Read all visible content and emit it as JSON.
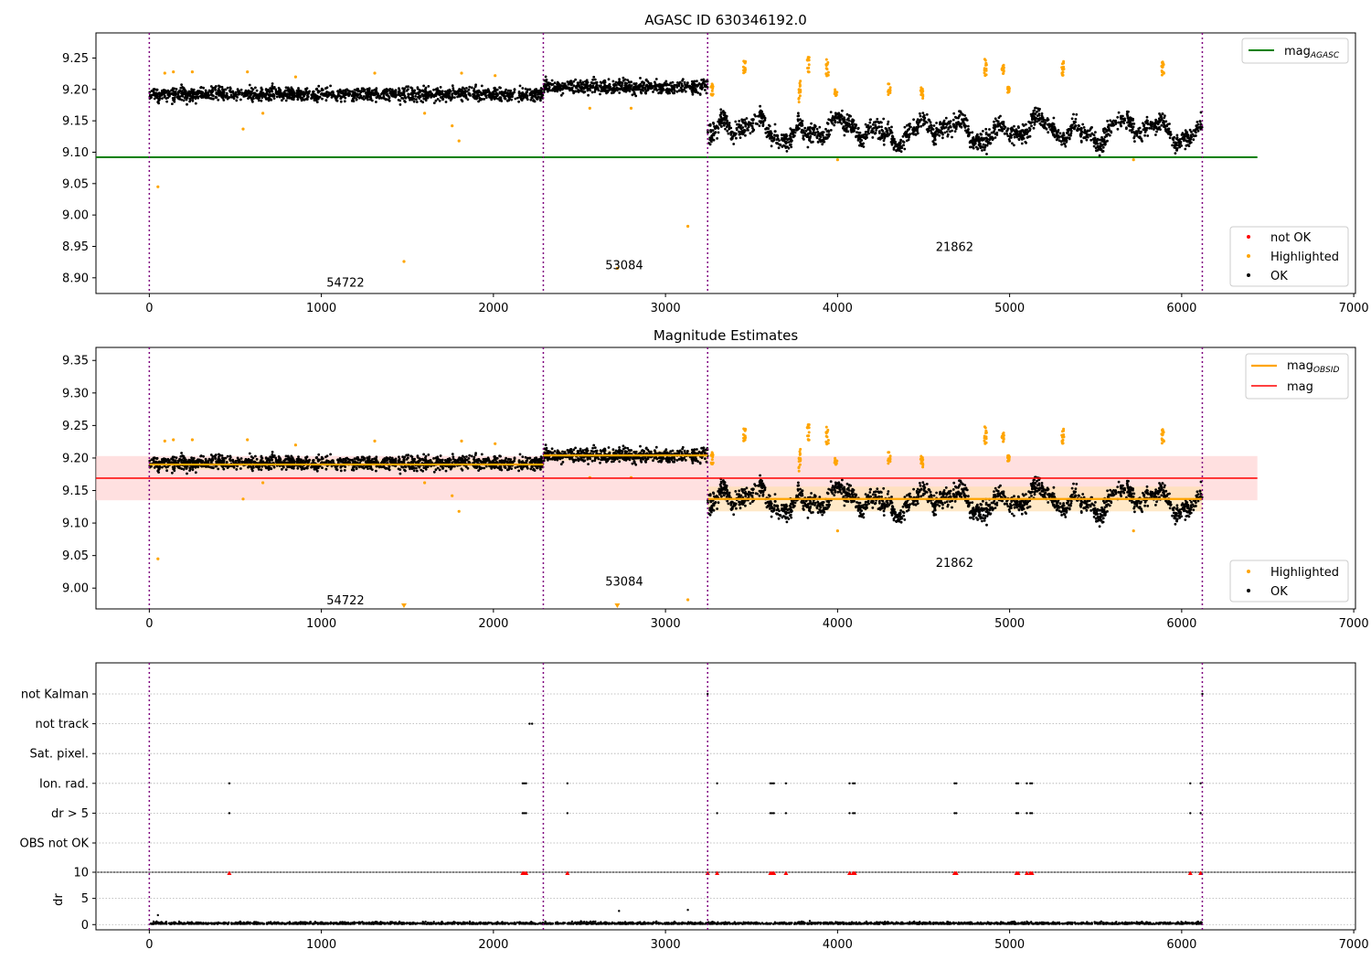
{
  "chart_data": [
    {
      "type": "scatter",
      "title": "AGASC ID 630346192.0",
      "xlabel": "",
      "ylabel": "",
      "xlim": [
        -310,
        7010
      ],
      "ylim": [
        8.875,
        9.29
      ],
      "xticks": [
        0,
        1000,
        2000,
        3000,
        4000,
        5000,
        6000,
        7000
      ],
      "yticks": [
        8.9,
        8.95,
        9.0,
        9.05,
        9.1,
        9.15,
        9.2,
        9.25
      ],
      "ytick_labels": [
        "8.90",
        "8.95",
        "9.00",
        "9.05",
        "9.10",
        "9.15",
        "9.20",
        "9.25"
      ],
      "obs_boundaries": [
        0,
        2290,
        3245,
        6120
      ],
      "obs_labels": [
        {
          "text": "54722",
          "x": 1140,
          "y": 8.893
        },
        {
          "text": "53084",
          "x": 2760,
          "y": 8.921
        },
        {
          "text": "21862",
          "x": 4680,
          "y": 8.95
        }
      ],
      "mag_agasc": 9.092,
      "mag_agasc_xrange": [
        -310,
        6440
      ],
      "segments": [
        {
          "x": [
            0,
            2290
          ],
          "mean": 9.192,
          "spread": 0.011
        },
        {
          "x": [
            2290,
            3245
          ],
          "mean": 9.204,
          "spread": 0.011
        },
        {
          "x": [
            3245,
            6120
          ],
          "mean": 9.135,
          "spread": 0.015
        }
      ],
      "highlight_clusters": [
        {
          "x": 3270,
          "y": [
            9.19,
            9.21
          ]
        },
        {
          "x": 3460,
          "y": [
            9.225,
            9.245
          ]
        },
        {
          "x": 3780,
          "y": [
            9.175,
            9.215
          ]
        },
        {
          "x": 3830,
          "y": [
            9.225,
            9.255
          ]
        },
        {
          "x": 3940,
          "y": [
            9.22,
            9.25
          ]
        },
        {
          "x": 3990,
          "y": [
            9.19,
            9.2
          ]
        },
        {
          "x": 4300,
          "y": [
            9.19,
            9.21
          ]
        },
        {
          "x": 4490,
          "y": [
            9.185,
            9.205
          ]
        },
        {
          "x": 4860,
          "y": [
            9.22,
            9.255
          ]
        },
        {
          "x": 4960,
          "y": [
            9.225,
            9.24
          ]
        },
        {
          "x": 4995,
          "y": [
            9.195,
            9.205
          ]
        },
        {
          "x": 5310,
          "y": [
            9.22,
            9.245
          ]
        },
        {
          "x": 5890,
          "y": [
            9.22,
            9.245
          ]
        }
      ],
      "highlight_outliers": [
        {
          "x": 50,
          "y": 9.045
        },
        {
          "x": 545,
          "y": 9.137
        },
        {
          "x": 1480,
          "y": 8.926
        },
        {
          "x": 1760,
          "y": 9.142
        },
        {
          "x": 1800,
          "y": 9.118
        },
        {
          "x": 2720,
          "y": 8.915
        },
        {
          "x": 3130,
          "y": 8.982
        },
        {
          "x": 250,
          "y": 9.228
        },
        {
          "x": 570,
          "y": 9.228
        },
        {
          "x": 850,
          "y": 9.22
        },
        {
          "x": 1310,
          "y": 9.226
        },
        {
          "x": 1815,
          "y": 9.226
        },
        {
          "x": 2010,
          "y": 9.222
        },
        {
          "x": 4000,
          "y": 9.088
        },
        {
          "x": 5720,
          "y": 9.088
        },
        {
          "x": 90,
          "y": 9.226
        },
        {
          "x": 140,
          "y": 9.228
        },
        {
          "x": 660,
          "y": 9.162
        },
        {
          "x": 1600,
          "y": 9.162
        },
        {
          "x": 2560,
          "y": 9.17
        },
        {
          "x": 2800,
          "y": 9.17
        }
      ],
      "legends": [
        {
          "position": "upper right",
          "entries": [
            {
              "label": "mag",
              "sub": "AGASC",
              "color": "#008000",
              "kind": "line"
            }
          ]
        },
        {
          "position": "lower right",
          "entries": [
            {
              "label": "not OK",
              "color": "#ff0000",
              "kind": "dot"
            },
            {
              "label": "Highlighted",
              "color": "#ffa500",
              "kind": "dot"
            },
            {
              "label": "OK",
              "color": "#000000",
              "kind": "dot"
            }
          ]
        }
      ]
    },
    {
      "type": "scatter",
      "title": "Magnitude Estimates",
      "xlabel": "",
      "ylabel": "",
      "xlim": [
        -310,
        7010
      ],
      "ylim": [
        8.968,
        9.37
      ],
      "xticks": [
        0,
        1000,
        2000,
        3000,
        4000,
        5000,
        6000,
        7000
      ],
      "yticks": [
        9.0,
        9.05,
        9.1,
        9.15,
        9.2,
        9.25,
        9.3,
        9.35
      ],
      "ytick_labels": [
        "9.00",
        "9.05",
        "9.10",
        "9.15",
        "9.20",
        "9.25",
        "9.30",
        "9.35"
      ],
      "obs_boundaries": [
        0,
        2290,
        3245,
        6120
      ],
      "obs_labels": [
        {
          "text": "54722",
          "x": 1140,
          "y": 8.982
        },
        {
          "text": "53084",
          "x": 2760,
          "y": 9.011
        },
        {
          "text": "21862",
          "x": 4680,
          "y": 9.04
        }
      ],
      "mag": 9.169,
      "mag_band": [
        9.135,
        9.203
      ],
      "mag_xrange": [
        -310,
        6440
      ],
      "mag_obsid": [
        {
          "x": [
            0,
            2290
          ],
          "value": 9.19,
          "band": [
            9.182,
            9.198
          ]
        },
        {
          "x": [
            2290,
            3245
          ],
          "value": 9.204,
          "band": [
            9.196,
            9.212
          ]
        },
        {
          "x": [
            3245,
            6120
          ],
          "value": 9.137,
          "band": [
            9.118,
            9.156
          ]
        }
      ],
      "legends": [
        {
          "position": "upper right",
          "entries": [
            {
              "label": "mag",
              "sub": "OBSID",
              "color": "#ffa500",
              "kind": "line"
            },
            {
              "label": "mag",
              "color": "#ff0000",
              "kind": "line"
            }
          ]
        },
        {
          "position": "lower right",
          "entries": [
            {
              "label": "Highlighted",
              "color": "#ffa500",
              "kind": "dot"
            },
            {
              "label": "OK",
              "color": "#000000",
              "kind": "dot"
            }
          ]
        }
      ]
    },
    {
      "type": "scatter",
      "title": "",
      "xlim": [
        -310,
        7010
      ],
      "xticks": [
        0,
        1000,
        2000,
        3000,
        4000,
        5000,
        6000,
        7000
      ],
      "flag_rows": [
        "not Kalman",
        "not track",
        "Sat. pixel.",
        "Ion. rad.",
        "dr > 5",
        "OBS not OK"
      ],
      "flag_points": {
        "not Kalman": [
          3245,
          6120
        ],
        "not track": [
          2210,
          2225
        ],
        "Sat. pixel.": [],
        "Ion. rad.": [
          465,
          2170,
          2180,
          2190,
          2430,
          3300,
          3610,
          3620,
          3630,
          3700,
          4070,
          4090,
          4100,
          4680,
          4690,
          5040,
          5050,
          5100,
          5120,
          5130,
          6050,
          6110
        ],
        "dr > 5": [
          465,
          2170,
          2180,
          2190,
          2430,
          3300,
          3610,
          3620,
          3630,
          3700,
          4070,
          4090,
          4100,
          4680,
          4690,
          5040,
          5050,
          5100,
          5120,
          5130,
          6050,
          6110
        ],
        "OBS not OK": []
      },
      "dr_ylabel": "dr",
      "dr_ylim": [
        -1,
        10
      ],
      "dr_yticks": [
        0,
        5,
        10
      ],
      "dr_clipped_x": [
        465,
        2170,
        2180,
        2190,
        2430,
        3245,
        3300,
        3610,
        3620,
        3630,
        3700,
        4070,
        4090,
        4100,
        4680,
        4690,
        5040,
        5050,
        5100,
        5120,
        5130,
        6050,
        6110
      ],
      "dr_outliers": [
        {
          "x": 50,
          "y": 1.8
        },
        {
          "x": 2730,
          "y": 2.6
        },
        {
          "x": 3130,
          "y": 2.8
        }
      ]
    }
  ],
  "colors": {
    "ok": "#000000",
    "highlighted": "#ffa500",
    "not_ok": "#ff0000",
    "agasc_line": "#008000",
    "mag_line": "#ff0000",
    "mag_band": "#ffcccc",
    "obsid_line": "#ffa500",
    "boundary": "#800080"
  }
}
